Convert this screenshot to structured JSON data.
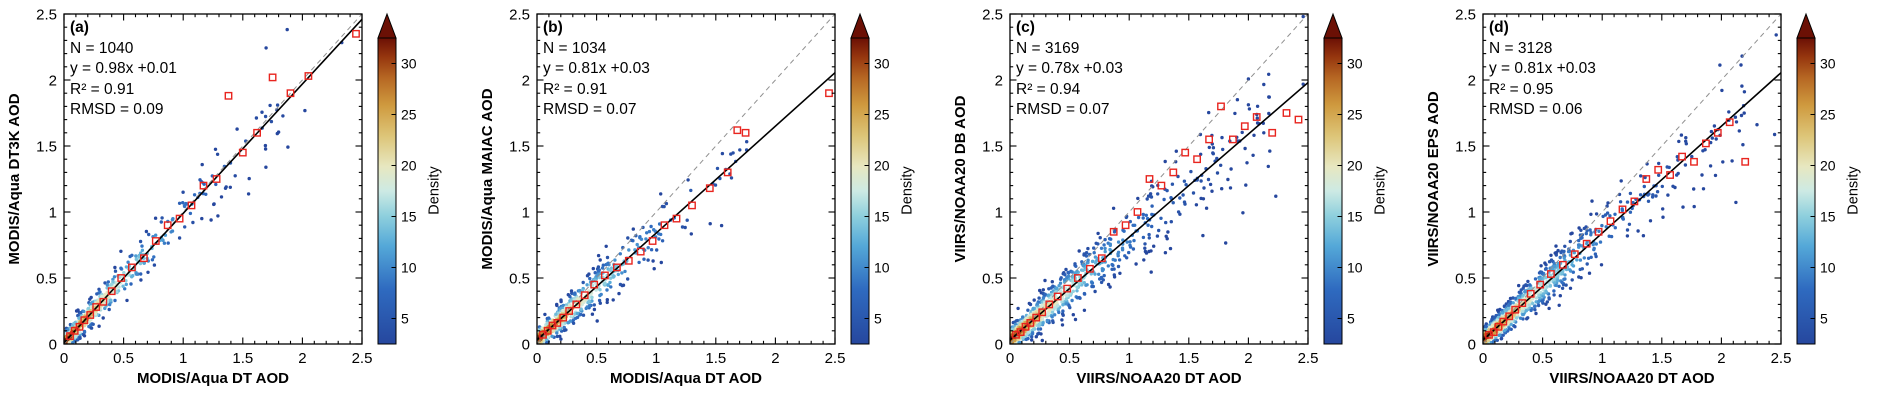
{
  "figure": {
    "panels": [
      {
        "id": "a",
        "label": "(a)",
        "stats": {
          "n": "N = 1040",
          "eq": "y = 0.98x +0.01",
          "r2": "R² = 0.91",
          "rmsd": "RMSD = 0.09"
        },
        "xlabel": "MODIS/Aqua DT AOD",
        "ylabel": "MODIS/Aqua DT3K AOD",
        "colorbar_label": "Density"
      },
      {
        "id": "b",
        "label": "(b)",
        "stats": {
          "n": "N = 1034",
          "eq": "y = 0.81x +0.03",
          "r2": "R² = 0.91",
          "rmsd": "RMSD = 0.07"
        },
        "xlabel": "MODIS/Aqua DT AOD",
        "ylabel": "MODIS/Aqua MAIAC AOD",
        "colorbar_label": "Density"
      },
      {
        "id": "c",
        "label": "(c)",
        "stats": {
          "n": "N = 3169",
          "eq": "y = 0.78x +0.03",
          "r2": "R² = 0.94",
          "rmsd": "RMSD = 0.07"
        },
        "xlabel": "VIIRS/NOAA20 DT AOD",
        "ylabel": "VIIRS/NOAA20 DB AOD",
        "colorbar_label": "Density"
      },
      {
        "id": "d",
        "label": "(d)",
        "stats": {
          "n": "N = 3128",
          "eq": "y = 0.81x +0.03",
          "r2": "R² = 0.95",
          "rmsd": "RMSD = 0.06"
        },
        "xlabel": "VIIRS/NOAA20 DT AOD",
        "ylabel": "VIIRS/NOAA20 EPS AOD",
        "colorbar_label": "Density"
      }
    ]
  },
  "colors": {
    "background": "#ffffff",
    "red_square": "#e8251f",
    "identity_line": "#909090",
    "fit_line": "#000000",
    "colormap": [
      [
        "0",
        "#26479e"
      ],
      [
        "0.18",
        "#2f6bc0"
      ],
      [
        "0.32",
        "#54a8d8"
      ],
      [
        "0.42",
        "#8fd0dd"
      ],
      [
        "0.5",
        "#cdeae4"
      ],
      [
        "0.58",
        "#e7e7c0"
      ],
      [
        "0.68",
        "#ddc578"
      ],
      [
        "0.78",
        "#cf9a3f"
      ],
      [
        "0.87",
        "#b66723"
      ],
      [
        "0.94",
        "#95350e"
      ],
      [
        "1",
        "#6b1005"
      ]
    ]
  },
  "chart_data": [
    {
      "type": "scatter",
      "id": "a",
      "panel_label": "(a)",
      "xlabel": "MODIS/Aqua DT AOD",
      "ylabel": "MODIS/Aqua DT3K AOD",
      "xlim": [
        0,
        2.5
      ],
      "ylim": [
        0,
        2.5
      ],
      "ticks": [
        0,
        0.5,
        1,
        1.5,
        2,
        2.5
      ],
      "tick_labels": [
        "0",
        "0.5",
        "1",
        "1.5",
        "2",
        "2.5"
      ],
      "N": 1040,
      "fit_slope": 0.98,
      "fit_intercept": 0.01,
      "R2": 0.91,
      "RMSD": 0.09,
      "identity_line": true,
      "colorbar": {
        "label": "Density",
        "ticks": [
          5,
          10,
          15,
          20,
          25,
          30
        ],
        "vmin": 2.5,
        "vmax": 32.5,
        "over_arrow": true
      },
      "binned_means": [
        [
          0.05,
          0.06
        ],
        [
          0.09,
          0.1
        ],
        [
          0.13,
          0.13
        ],
        [
          0.17,
          0.18
        ],
        [
          0.22,
          0.22
        ],
        [
          0.27,
          0.28
        ],
        [
          0.33,
          0.32
        ],
        [
          0.4,
          0.4
        ],
        [
          0.48,
          0.5
        ],
        [
          0.57,
          0.58
        ],
        [
          0.67,
          0.65
        ],
        [
          0.77,
          0.78
        ],
        [
          0.87,
          0.9
        ],
        [
          0.97,
          0.95
        ],
        [
          1.07,
          1.05
        ],
        [
          1.17,
          1.2
        ],
        [
          1.28,
          1.25
        ],
        [
          1.38,
          1.88
        ],
        [
          1.5,
          1.45
        ],
        [
          1.62,
          1.6
        ],
        [
          1.75,
          2.02
        ],
        [
          1.9,
          1.9
        ],
        [
          2.05,
          2.03
        ],
        [
          2.45,
          2.35
        ]
      ],
      "cloud": {
        "seed": 11,
        "points": 560,
        "tau": 0.3,
        "noise": 0.07,
        "far_frac": 0.09,
        "far_max": 1.9
      }
    },
    {
      "type": "scatter",
      "id": "b",
      "panel_label": "(b)",
      "xlabel": "MODIS/Aqua DT AOD",
      "ylabel": "MODIS/Aqua MAIAC AOD",
      "xlim": [
        0,
        2.5
      ],
      "ylim": [
        0,
        2.5
      ],
      "ticks": [
        0,
        0.5,
        1,
        1.5,
        2,
        2.5
      ],
      "tick_labels": [
        "0",
        "0.5",
        "1",
        "1.5",
        "2",
        "2.5"
      ],
      "N": 1034,
      "fit_slope": 0.81,
      "fit_intercept": 0.03,
      "R2": 0.91,
      "RMSD": 0.07,
      "identity_line": true,
      "colorbar": {
        "label": "Density",
        "ticks": [
          5,
          10,
          15,
          20,
          25,
          30
        ],
        "vmin": 2.5,
        "vmax": 32.5,
        "over_arrow": true
      },
      "binned_means": [
        [
          0.05,
          0.07
        ],
        [
          0.09,
          0.1
        ],
        [
          0.13,
          0.14
        ],
        [
          0.17,
          0.16
        ],
        [
          0.22,
          0.2
        ],
        [
          0.27,
          0.25
        ],
        [
          0.33,
          0.3
        ],
        [
          0.4,
          0.37
        ],
        [
          0.48,
          0.45
        ],
        [
          0.57,
          0.52
        ],
        [
          0.67,
          0.58
        ],
        [
          0.77,
          0.63
        ],
        [
          0.87,
          0.7
        ],
        [
          0.97,
          0.78
        ],
        [
          1.07,
          0.9
        ],
        [
          1.17,
          0.95
        ],
        [
          1.3,
          1.05
        ],
        [
          1.45,
          1.18
        ],
        [
          1.6,
          1.3
        ],
        [
          1.68,
          1.62
        ],
        [
          1.75,
          1.6
        ],
        [
          2.45,
          1.9
        ]
      ],
      "cloud": {
        "seed": 22,
        "points": 560,
        "tau": 0.3,
        "noise": 0.075,
        "far_frac": 0.09,
        "far_max": 1.8
      }
    },
    {
      "type": "scatter",
      "id": "c",
      "panel_label": "(c)",
      "xlabel": "VIIRS/NOAA20 DT AOD",
      "ylabel": "VIIRS/NOAA20 DB AOD",
      "xlim": [
        0,
        2.5
      ],
      "ylim": [
        0,
        2.5
      ],
      "ticks": [
        0,
        0.5,
        1,
        1.5,
        2,
        2.5
      ],
      "tick_labels": [
        "0",
        "0.5",
        "1",
        "1.5",
        "2",
        "2.5"
      ],
      "N": 3169,
      "fit_slope": 0.78,
      "fit_intercept": 0.03,
      "R2": 0.94,
      "RMSD": 0.07,
      "identity_line": true,
      "colorbar": {
        "label": "Density",
        "ticks": [
          5,
          10,
          15,
          20,
          25,
          30
        ],
        "vmin": 2.5,
        "vmax": 32.5,
        "over_arrow": true
      },
      "binned_means": [
        [
          0.05,
          0.07
        ],
        [
          0.09,
          0.09
        ],
        [
          0.13,
          0.13
        ],
        [
          0.17,
          0.16
        ],
        [
          0.22,
          0.2
        ],
        [
          0.27,
          0.24
        ],
        [
          0.33,
          0.3
        ],
        [
          0.4,
          0.36
        ],
        [
          0.48,
          0.42
        ],
        [
          0.57,
          0.5
        ],
        [
          0.67,
          0.57
        ],
        [
          0.77,
          0.65
        ],
        [
          0.87,
          0.85
        ],
        [
          0.97,
          0.9
        ],
        [
          1.07,
          1.0
        ],
        [
          1.17,
          1.25
        ],
        [
          1.27,
          1.2
        ],
        [
          1.37,
          1.3
        ],
        [
          1.47,
          1.45
        ],
        [
          1.57,
          1.4
        ],
        [
          1.67,
          1.55
        ],
        [
          1.77,
          1.8
        ],
        [
          1.87,
          1.55
        ],
        [
          1.97,
          1.65
        ],
        [
          2.07,
          1.72
        ],
        [
          2.2,
          1.6
        ],
        [
          2.32,
          1.75
        ],
        [
          2.42,
          1.7
        ]
      ],
      "cloud": {
        "seed": 33,
        "points": 1000,
        "tau": 0.34,
        "noise": 0.085,
        "far_frac": 0.14,
        "far_max": 2.2
      }
    },
    {
      "type": "scatter",
      "id": "d",
      "panel_label": "(d)",
      "xlabel": "VIIRS/NOAA20 DT AOD",
      "ylabel": "VIIRS/NOAA20 EPS AOD",
      "xlim": [
        0,
        2.5
      ],
      "ylim": [
        0,
        2.5
      ],
      "ticks": [
        0,
        0.5,
        1,
        1.5,
        2,
        2.5
      ],
      "tick_labels": [
        "0",
        "0.5",
        "1",
        "1.5",
        "2",
        "2.5"
      ],
      "N": 3128,
      "fit_slope": 0.81,
      "fit_intercept": 0.03,
      "R2": 0.95,
      "RMSD": 0.06,
      "identity_line": true,
      "colorbar": {
        "label": "Density",
        "ticks": [
          5,
          10,
          15,
          20,
          25,
          30
        ],
        "vmin": 2.5,
        "vmax": 32.5,
        "over_arrow": true
      },
      "binned_means": [
        [
          0.05,
          0.07
        ],
        [
          0.09,
          0.09
        ],
        [
          0.13,
          0.13
        ],
        [
          0.17,
          0.17
        ],
        [
          0.22,
          0.21
        ],
        [
          0.27,
          0.26
        ],
        [
          0.33,
          0.31
        ],
        [
          0.4,
          0.38
        ],
        [
          0.48,
          0.45
        ],
        [
          0.57,
          0.53
        ],
        [
          0.67,
          0.6
        ],
        [
          0.77,
          0.68
        ],
        [
          0.87,
          0.76
        ],
        [
          0.97,
          0.85
        ],
        [
          1.07,
          0.93
        ],
        [
          1.17,
          1.02
        ],
        [
          1.27,
          1.08
        ],
        [
          1.37,
          1.25
        ],
        [
          1.47,
          1.32
        ],
        [
          1.57,
          1.28
        ],
        [
          1.67,
          1.42
        ],
        [
          1.77,
          1.38
        ],
        [
          1.87,
          1.52
        ],
        [
          1.97,
          1.6
        ],
        [
          2.07,
          1.68
        ],
        [
          2.2,
          1.38
        ]
      ],
      "cloud": {
        "seed": 44,
        "points": 1000,
        "tau": 0.34,
        "noise": 0.075,
        "far_frac": 0.14,
        "far_max": 2.2
      }
    }
  ]
}
